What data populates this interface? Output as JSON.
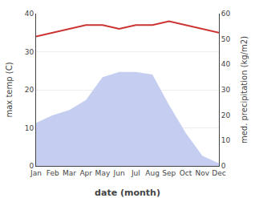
{
  "chart_data": {
    "type": "line",
    "categories": [
      "Jan",
      "Feb",
      "Mar",
      "Apr",
      "May",
      "Jun",
      "Jul",
      "Aug",
      "Sep",
      "Oct",
      "Nov",
      "Dec"
    ],
    "series": [
      {
        "type": "area",
        "color": "#c5cef0",
        "axis": "y2",
        "values": [
          17,
          20,
          22,
          26,
          35,
          37,
          37,
          36,
          24,
          13,
          4,
          1
        ]
      },
      {
        "type": "line",
        "color": "#cc3333",
        "values": [
          34,
          35,
          36,
          37,
          37,
          36,
          37,
          37,
          38,
          37,
          36,
          35
        ]
      }
    ],
    "x_label": "date (month)",
    "y_label": "max temp (C)",
    "y2_label": "med. precipitation (kg/m2)",
    "ylim": [
      0,
      40
    ],
    "yticks": [
      0,
      10,
      20,
      30,
      40
    ],
    "y2lim": [
      0,
      60
    ],
    "y2ticks": [
      0,
      10,
      20,
      30,
      40,
      50,
      60
    ],
    "grid": true
  }
}
